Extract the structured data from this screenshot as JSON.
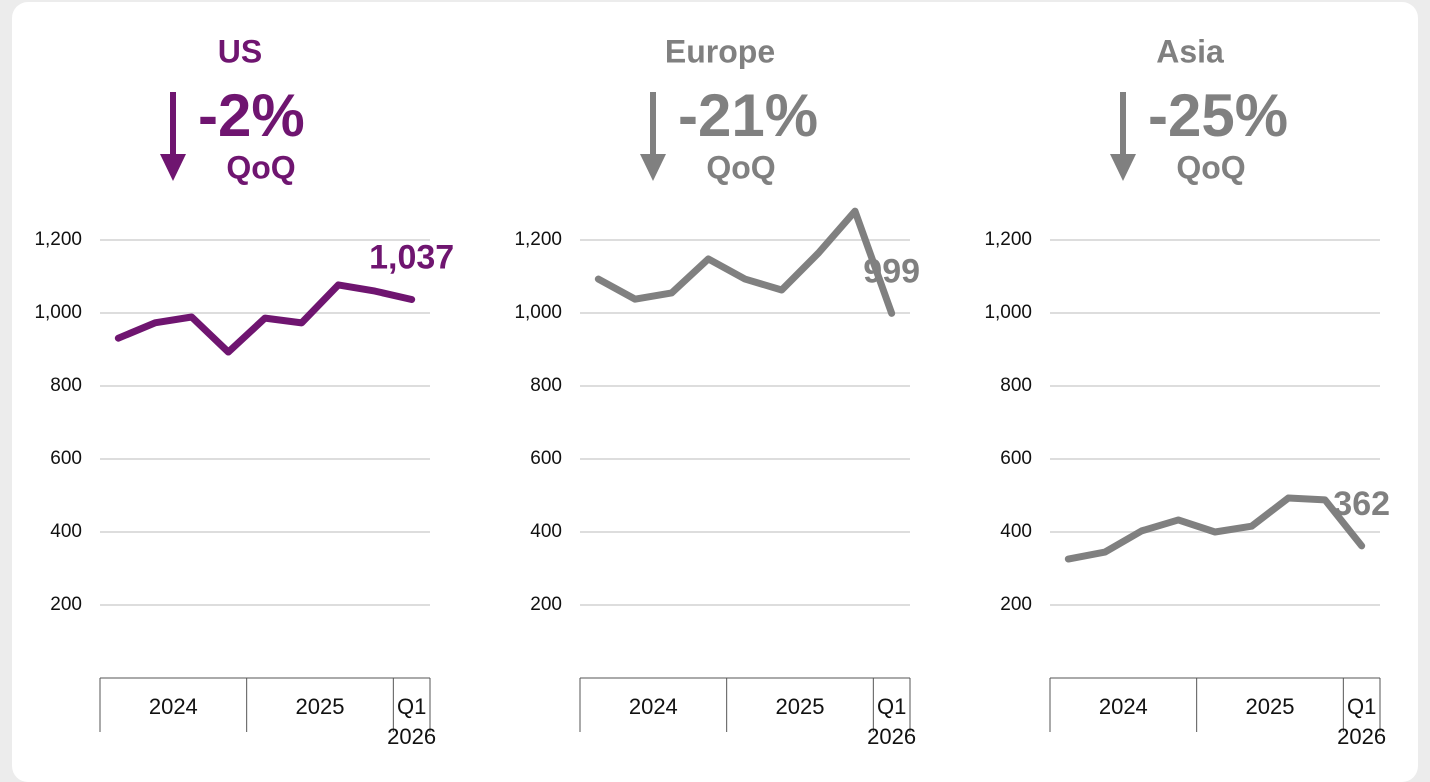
{
  "chart_data": [
    {
      "type": "line",
      "title": "US",
      "headline": "-2%",
      "headline_note": "QoQ",
      "color": "#6f1570",
      "categories": [
        null,
        null,
        null,
        null,
        null,
        null,
        null,
        null,
        null
      ],
      "groups": [
        {
          "label": "2024",
          "count": 4
        },
        {
          "label": "2025",
          "count": 4
        },
        {
          "label": "Q1 2026",
          "count": 1
        }
      ],
      "values": [
        931,
        973,
        989,
        893,
        986,
        973,
        1077,
        1060,
        1037
      ],
      "value_labels": [
        null,
        null,
        null,
        null,
        null,
        null,
        null,
        null,
        "1,037"
      ],
      "ylim": [
        0,
        1300
      ],
      "yticks": [
        200,
        400,
        600,
        800,
        {
          "value": 1000,
          "label": "1,000"
        },
        {
          "value": 1200,
          "label": "1,200"
        }
      ],
      "grid": true
    },
    {
      "type": "line",
      "title": "Europe",
      "headline": "-21%",
      "headline_note": "QoQ",
      "color": "#808080",
      "categories": [
        null,
        null,
        null,
        null,
        null,
        null,
        null,
        null,
        null
      ],
      "groups": [
        {
          "label": "2024",
          "count": 4
        },
        {
          "label": "2025",
          "count": 4
        },
        {
          "label": "Q1 2026",
          "count": 1
        }
      ],
      "values": [
        1093,
        1038,
        1055,
        1148,
        1093,
        1063,
        1164,
        1279,
        999
      ],
      "value_labels": [
        null,
        null,
        null,
        null,
        null,
        null,
        null,
        null,
        "999"
      ],
      "ylim": [
        0,
        1300
      ],
      "yticks": [
        200,
        400,
        600,
        800,
        {
          "value": 1000,
          "label": "1,000"
        },
        {
          "value": 1200,
          "label": "1,200"
        }
      ],
      "grid": true
    },
    {
      "type": "line",
      "title": "Asia",
      "headline": "-25%",
      "headline_note": "QoQ",
      "color": "#808080",
      "categories": [
        null,
        null,
        null,
        null,
        null,
        null,
        null,
        null,
        null
      ],
      "groups": [
        {
          "label": "2024",
          "count": 4
        },
        {
          "label": "2025",
          "count": 4
        },
        {
          "label": "Q1 2026",
          "count": 1
        }
      ],
      "values": [
        326,
        345,
        403,
        433,
        400,
        416,
        493,
        488,
        362
      ],
      "value_labels": [
        null,
        null,
        null,
        null,
        null,
        null,
        null,
        null,
        "362"
      ],
      "ylim": [
        0,
        1300
      ],
      "yticks": [
        200,
        400,
        600,
        800,
        {
          "value": 1000,
          "label": "1,000"
        },
        {
          "value": 1200,
          "label": "1,200"
        }
      ],
      "grid": true
    }
  ]
}
